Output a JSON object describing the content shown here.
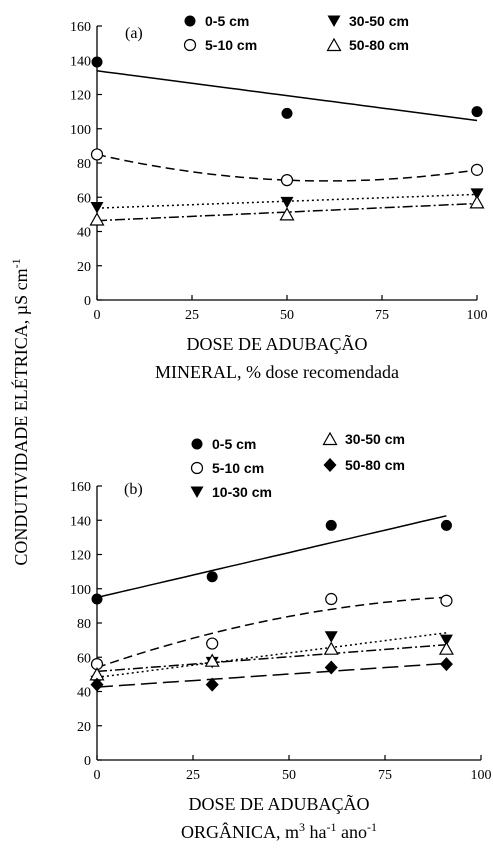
{
  "y_axis_label": "CONDUTIVIDADE ELÉTRICA, µS cm",
  "y_axis_label_sup": "-1",
  "chart_data": [
    {
      "type": "scatter",
      "panel_label": "(a)",
      "xlabel_line1": "DOSE DE ADUBAÇÃO",
      "xlabel_line2": "MINERAL, % dose recomendada",
      "xlim": [
        0,
        100
      ],
      "ylim": [
        0,
        160
      ],
      "xticks": [
        0,
        25,
        50,
        75,
        100
      ],
      "yticks": [
        0,
        20,
        40,
        60,
        80,
        100,
        120,
        140,
        160
      ],
      "series": [
        {
          "name": "0-5 cm",
          "marker": "filled-circle",
          "line": "solid",
          "x": [
            0,
            50,
            100
          ],
          "y": [
            139,
            109,
            110
          ],
          "fit": "linear"
        },
        {
          "name": "5-10 cm",
          "marker": "open-circle",
          "line": "dashed",
          "x": [
            0,
            50,
            100
          ],
          "y": [
            85,
            70,
            76
          ],
          "fit": "quadratic"
        },
        {
          "name": "30-50 cm",
          "marker": "filled-triangle-down",
          "line": "dotted",
          "x": [
            0,
            50,
            100
          ],
          "y": [
            54,
            57,
            62
          ],
          "fit": "linear"
        },
        {
          "name": "50-80 cm",
          "marker": "open-triangle-up",
          "line": "dash-dot",
          "x": [
            0,
            50,
            100
          ],
          "y": [
            47,
            50,
            57
          ],
          "fit": "linear"
        }
      ]
    },
    {
      "type": "scatter",
      "panel_label": "(b)",
      "xlabel_line1": "DOSE DE ADUBAÇÃO",
      "xlabel_line2": "ORGÂNICA, m",
      "xlabel_line2_parts": [
        "3",
        " ha",
        "-1",
        " ano",
        "-1"
      ],
      "xlim": [
        0,
        100
      ],
      "ylim": [
        0,
        160
      ],
      "xticks": [
        0,
        25,
        50,
        75,
        100
      ],
      "yticks": [
        0,
        20,
        40,
        60,
        80,
        100,
        120,
        140,
        160
      ],
      "series": [
        {
          "name": "0-5 cm",
          "marker": "filled-circle",
          "line": "solid",
          "x": [
            0,
            30,
            61,
            91
          ],
          "y": [
            94,
            107,
            137,
            137
          ],
          "fit": "linear"
        },
        {
          "name": "5-10 cm",
          "marker": "open-circle",
          "line": "dashed",
          "x": [
            0,
            30,
            61,
            91
          ],
          "y": [
            56,
            68,
            94,
            93
          ],
          "fit": "quadratic"
        },
        {
          "name": "10-30 cm",
          "marker": "filled-triangle-down",
          "line": "dotted",
          "x": [
            0,
            30,
            61,
            91
          ],
          "y": [
            46,
            57,
            72,
            70
          ],
          "fit": "linear"
        },
        {
          "name": "30-50 cm",
          "marker": "open-triangle-up",
          "line": "dash-dot",
          "x": [
            0,
            30,
            61,
            91
          ],
          "y": [
            50,
            58,
            65,
            65
          ],
          "fit": "linear"
        },
        {
          "name": "50-80 cm",
          "marker": "filled-diamond",
          "line": "long-dash",
          "x": [
            0,
            30,
            61,
            91
          ],
          "y": [
            44,
            44,
            54,
            56
          ],
          "fit": "linear"
        }
      ]
    }
  ]
}
